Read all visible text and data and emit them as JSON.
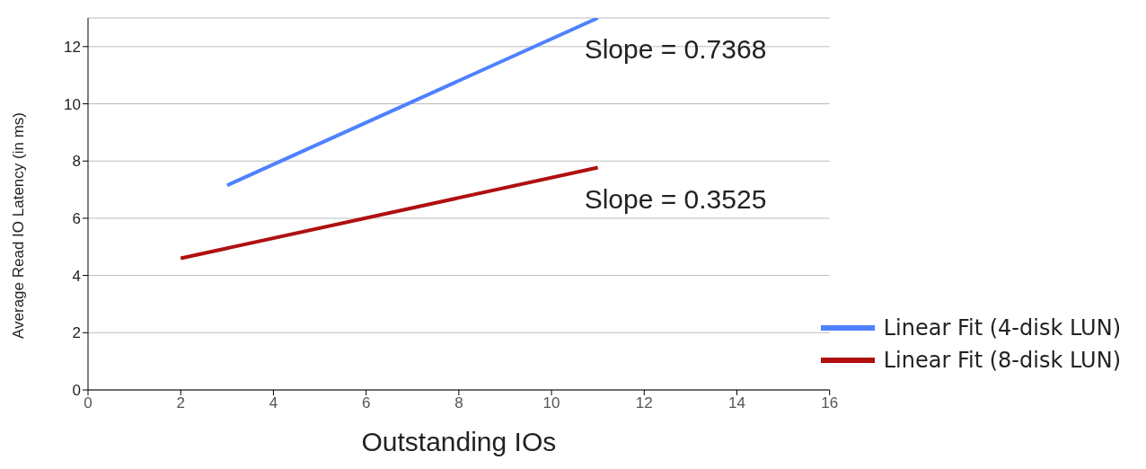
{
  "chart_data": {
    "type": "line",
    "xlabel": "Outstanding IOs",
    "ylabel": "Average Read IO Latency (in ms)",
    "series": [
      {
        "name": "Linear Fit (4-disk LUN)",
        "color": "#4f81ff",
        "x": [
          3,
          11
        ],
        "values": [
          7.15,
          13.0
        ]
      },
      {
        "name": "Linear Fit (8-disk LUN)",
        "color": "#b01010",
        "x": [
          2,
          11
        ],
        "values": [
          4.6,
          7.77
        ]
      }
    ],
    "annotations": [
      "Slope = 0.7368",
      "Slope = 0.3525"
    ],
    "xlim": [
      0,
      16
    ],
    "xticks": [
      0,
      2,
      4,
      6,
      8,
      10,
      12,
      14,
      16
    ],
    "ylim": [
      0,
      13
    ],
    "yticks": [
      0,
      2,
      4,
      6,
      8,
      10,
      12
    ],
    "grid": "y",
    "legend": "bottom right",
    "marker": "none",
    "line_style": "solid"
  }
}
